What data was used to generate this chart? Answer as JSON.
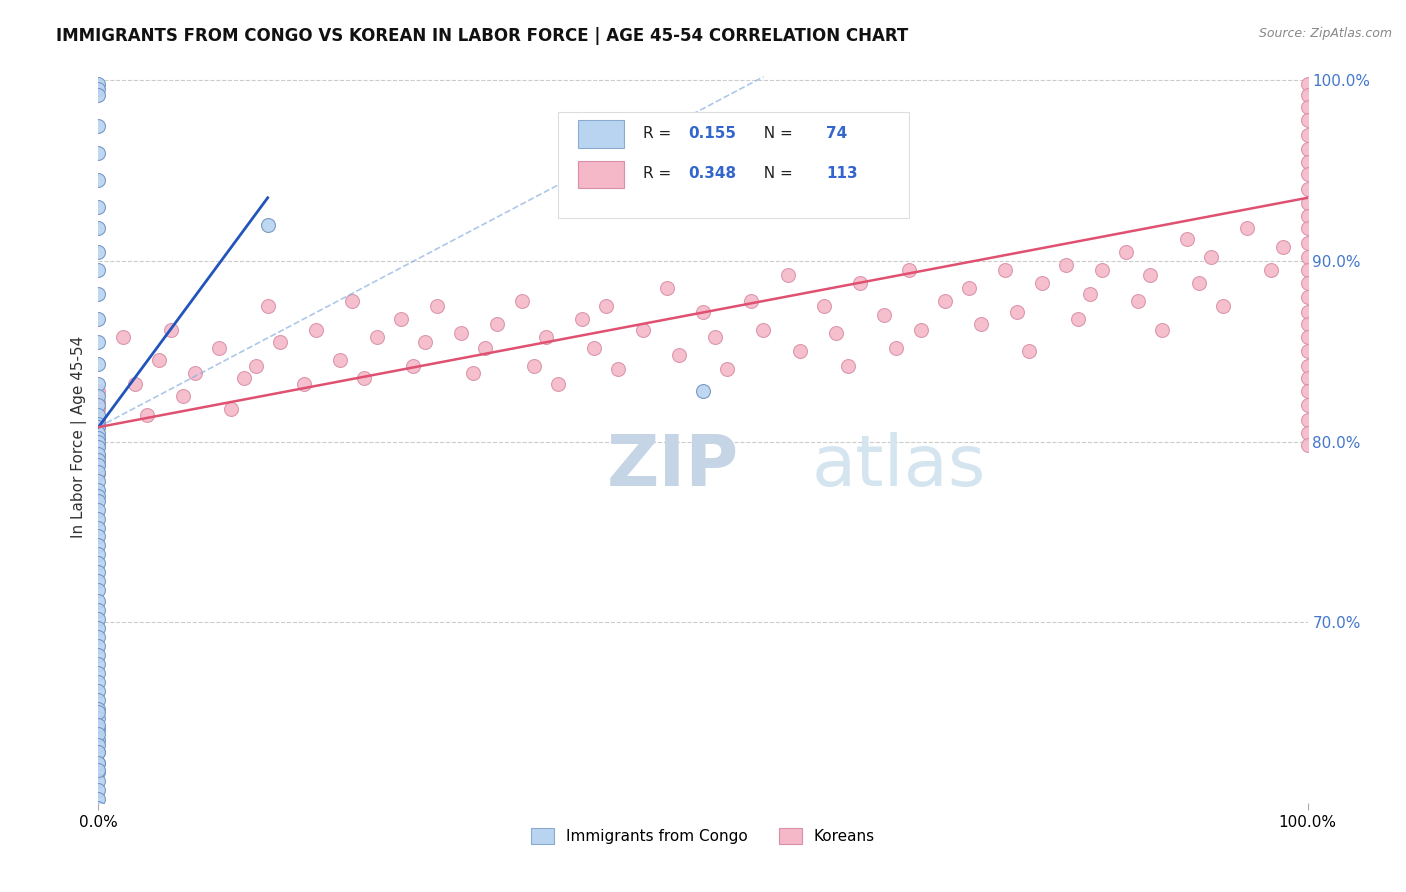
{
  "title": "IMMIGRANTS FROM CONGO VS KOREAN IN LABOR FORCE | AGE 45-54 CORRELATION CHART",
  "source": "Source: ZipAtlas.com",
  "ylabel": "In Labor Force | Age 45-54",
  "legend_entries": [
    {
      "R": "0.155",
      "N": "74",
      "color": "#b8d4f0",
      "edge": "#8aaad0"
    },
    {
      "R": "0.348",
      "N": "113",
      "color": "#f5b8c8",
      "edge": "#d890a8"
    }
  ],
  "legend_footer": [
    "Immigrants from Congo",
    "Koreans"
  ],
  "legend_footer_colors": [
    "#b8d4f0",
    "#f5b8c8"
  ],
  "legend_footer_edges": [
    "#8aaad0",
    "#d890a8"
  ],
  "watermark_zip": "ZIP",
  "watermark_atlas": "atlas",
  "congo_scatter_color": "#b8d4f0",
  "congo_scatter_edge": "#7090c0",
  "korean_scatter_color": "#f5b8c8",
  "korean_scatter_edge": "#d890a8",
  "congo_line_color": "#2255bb",
  "korean_line_color": "#e05070",
  "scatter_size": 100,
  "xlim": [
    0.0,
    1.0
  ],
  "ylim": [
    0.6,
    1.005
  ],
  "xticks": [
    0.0,
    1.0
  ],
  "xtick_labels": [
    "0.0%",
    "100.0%"
  ],
  "yticks_right": [
    0.7,
    0.8,
    0.9,
    1.0
  ],
  "ytick_right_labels": [
    "70.0%",
    "80.0%",
    "90.0%",
    "100.0%"
  ],
  "grid_color": "#cccccc",
  "background_color": "#ffffff",
  "title_fontsize": 12,
  "axis_fontsize": 11,
  "right_tick_color": "#4477cc",
  "watermark_color_zip": "#c8d8e8",
  "watermark_color_atlas": "#c8d8e8",
  "source_color": "#888888",
  "congo_scatter_x": [
    0.0,
    0.0,
    0.0,
    0.0,
    0.0,
    0.0,
    0.0,
    0.0,
    0.0,
    0.0,
    0.0,
    0.0,
    0.0,
    0.0,
    0.0,
    0.0,
    0.0,
    0.0,
    0.0,
    0.0,
    0.0,
    0.0,
    0.0,
    0.0,
    0.0,
    0.0,
    0.0,
    0.0,
    0.0,
    0.0,
    0.0,
    0.0,
    0.0,
    0.0,
    0.0,
    0.0,
    0.0,
    0.0,
    0.0,
    0.0,
    0.0,
    0.0,
    0.0,
    0.0,
    0.0,
    0.0,
    0.0,
    0.0,
    0.0,
    0.0,
    0.0,
    0.0,
    0.0,
    0.0,
    0.0,
    0.0,
    0.0,
    0.0,
    0.0,
    0.0,
    0.0,
    0.0,
    0.0,
    0.0,
    0.0,
    0.0,
    0.0,
    0.0,
    0.0,
    0.0,
    0.0,
    0.0,
    0.14,
    0.5
  ],
  "congo_scatter_y": [
    0.998,
    0.995,
    0.992,
    0.975,
    0.96,
    0.945,
    0.93,
    0.918,
    0.905,
    0.895,
    0.882,
    0.868,
    0.855,
    0.843,
    0.832,
    0.825,
    0.82,
    0.815,
    0.81,
    0.808,
    0.805,
    0.802,
    0.8,
    0.797,
    0.793,
    0.79,
    0.787,
    0.783,
    0.778,
    0.773,
    0.77,
    0.767,
    0.762,
    0.757,
    0.752,
    0.748,
    0.743,
    0.738,
    0.733,
    0.728,
    0.723,
    0.718,
    0.712,
    0.707,
    0.702,
    0.697,
    0.692,
    0.687,
    0.682,
    0.677,
    0.672,
    0.667,
    0.662,
    0.657,
    0.652,
    0.647,
    0.641,
    0.635,
    0.628,
    0.622,
    0.617,
    0.612,
    0.607,
    0.602,
    0.597,
    0.65,
    0.643,
    0.638,
    0.632,
    0.628,
    0.622,
    0.618,
    0.92,
    0.828
  ],
  "korean_scatter_x": [
    0.0,
    0.0,
    0.0,
    0.0,
    0.0,
    0.0,
    0.0,
    0.0,
    0.0,
    0.0,
    0.02,
    0.03,
    0.04,
    0.05,
    0.06,
    0.07,
    0.08,
    0.1,
    0.11,
    0.12,
    0.13,
    0.14,
    0.15,
    0.17,
    0.18,
    0.2,
    0.21,
    0.22,
    0.23,
    0.25,
    0.26,
    0.27,
    0.28,
    0.3,
    0.31,
    0.32,
    0.33,
    0.35,
    0.36,
    0.37,
    0.38,
    0.4,
    0.41,
    0.42,
    0.43,
    0.45,
    0.47,
    0.48,
    0.5,
    0.51,
    0.52,
    0.54,
    0.55,
    0.57,
    0.58,
    0.6,
    0.61,
    0.62,
    0.63,
    0.65,
    0.66,
    0.67,
    0.68,
    0.7,
    0.72,
    0.73,
    0.75,
    0.76,
    0.77,
    0.78,
    0.8,
    0.81,
    0.82,
    0.83,
    0.85,
    0.86,
    0.87,
    0.88,
    0.9,
    0.91,
    0.92,
    0.93,
    0.95,
    0.97,
    0.98,
    1.0,
    1.0,
    1.0,
    1.0,
    1.0,
    1.0,
    1.0,
    1.0,
    1.0,
    1.0,
    1.0,
    1.0,
    1.0,
    1.0,
    1.0,
    1.0,
    1.0,
    1.0,
    1.0,
    1.0,
    1.0,
    1.0,
    1.0,
    1.0,
    1.0,
    1.0,
    1.0,
    1.0
  ],
  "korean_scatter_y": [
    0.828,
    0.822,
    0.818,
    0.812,
    0.808,
    0.802,
    0.798,
    0.792,
    0.787,
    0.782,
    0.858,
    0.832,
    0.815,
    0.845,
    0.862,
    0.825,
    0.838,
    0.852,
    0.818,
    0.835,
    0.842,
    0.875,
    0.855,
    0.832,
    0.862,
    0.845,
    0.878,
    0.835,
    0.858,
    0.868,
    0.842,
    0.855,
    0.875,
    0.86,
    0.838,
    0.852,
    0.865,
    0.878,
    0.842,
    0.858,
    0.832,
    0.868,
    0.852,
    0.875,
    0.84,
    0.862,
    0.885,
    0.848,
    0.872,
    0.858,
    0.84,
    0.878,
    0.862,
    0.892,
    0.85,
    0.875,
    0.86,
    0.842,
    0.888,
    0.87,
    0.852,
    0.895,
    0.862,
    0.878,
    0.885,
    0.865,
    0.895,
    0.872,
    0.85,
    0.888,
    0.898,
    0.868,
    0.882,
    0.895,
    0.905,
    0.878,
    0.892,
    0.862,
    0.912,
    0.888,
    0.902,
    0.875,
    0.918,
    0.895,
    0.908,
    0.998,
    0.992,
    0.985,
    0.978,
    0.97,
    0.962,
    0.955,
    0.948,
    0.94,
    0.932,
    0.925,
    0.918,
    0.91,
    0.902,
    0.895,
    0.888,
    0.88,
    0.872,
    0.865,
    0.858,
    0.85,
    0.842,
    0.835,
    0.828,
    0.82,
    0.812,
    0.805,
    0.798
  ],
  "congo_trend_x": [
    0.0,
    0.14
  ],
  "congo_trend_y": [
    0.808,
    0.935
  ],
  "korean_trend_x": [
    0.0,
    1.0
  ],
  "korean_trend_y": [
    0.808,
    0.935
  ]
}
